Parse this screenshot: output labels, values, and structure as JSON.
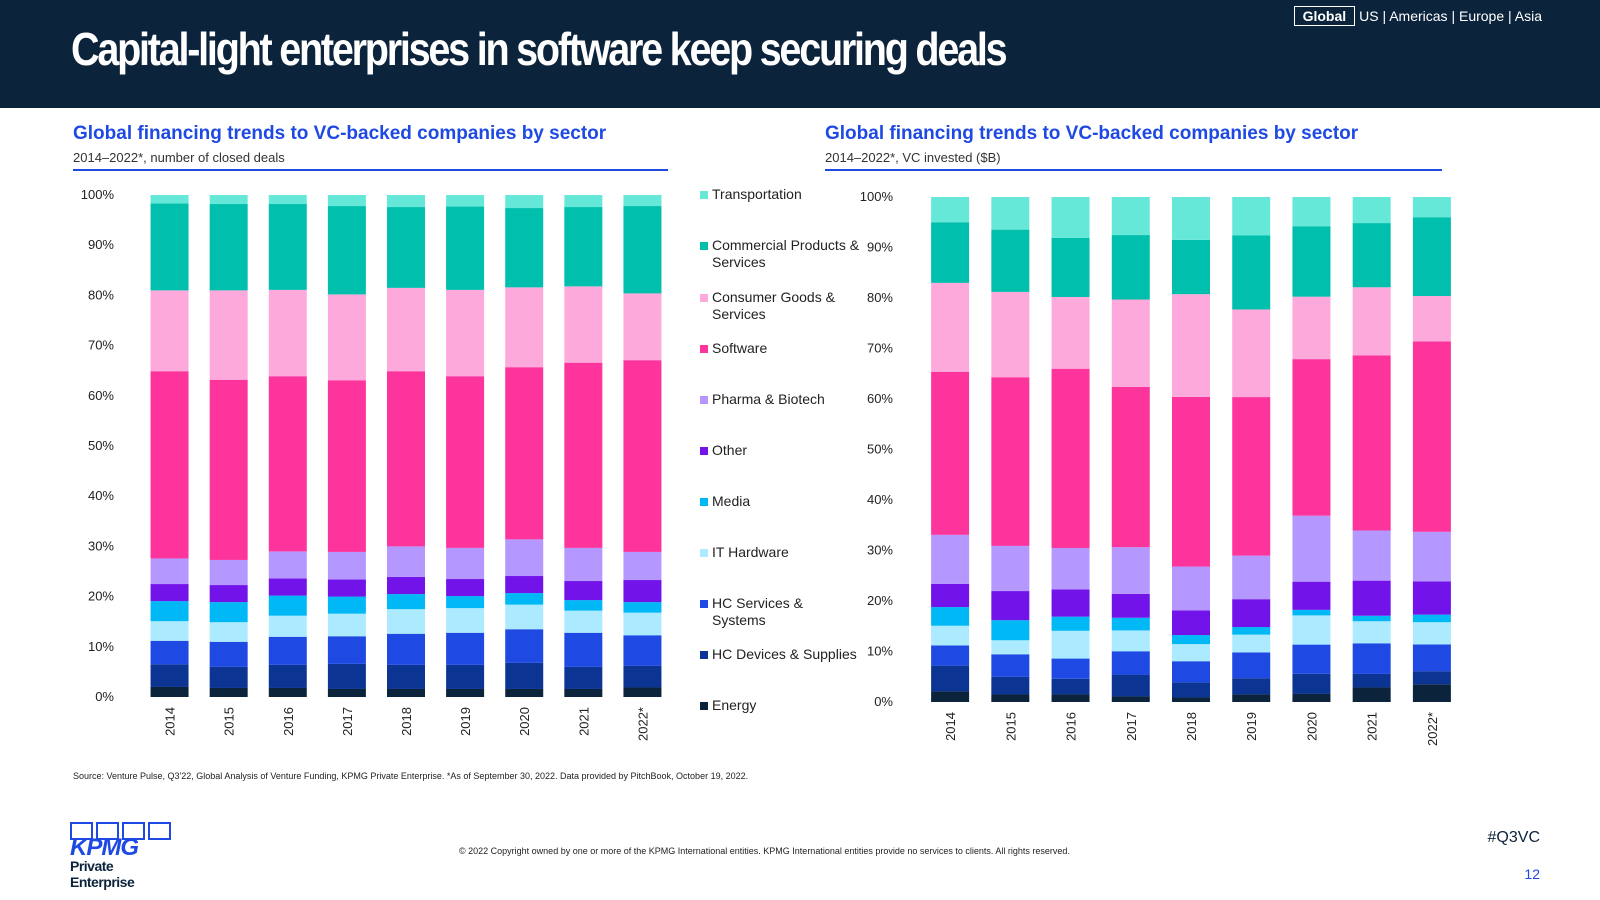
{
  "header": {
    "title": "Capital-light enterprises in software keep securing deals",
    "regions_active": "Global",
    "regions_rest": "US | Americas | Europe | Asia"
  },
  "colors": {
    "Transportation": "#66e8d9",
    "Commercial Products & Services": "#00bfad",
    "Consumer Goods & Services": "#fda9dc",
    "Software": "#fd349c",
    "Pharma & Biotech": "#b497ff",
    "Other": "#7213ea",
    "Media": "#00b8f5",
    "IT Hardware": "#acebff",
    "HC Services & Systems": "#1e49e2",
    "HC Devices & Supplies": "#0c3593",
    "Energy": "#0c233c"
  },
  "legend": [
    {
      "key": "Transportation",
      "label": "Transportation"
    },
    {
      "key": "Commercial Products & Services",
      "label": "Commercial Products & Services"
    },
    {
      "key": "Consumer Goods & Services",
      "label": "Consumer Goods & Services"
    },
    {
      "key": "Software",
      "label": "Software"
    },
    {
      "key": "Pharma & Biotech",
      "label": "Pharma & Biotech"
    },
    {
      "key": "Other",
      "label": "Other"
    },
    {
      "key": "Media",
      "label": "Media"
    },
    {
      "key": "IT Hardware",
      "label": "IT Hardware"
    },
    {
      "key": "HC Services & Systems",
      "label": "HC Services & Systems"
    },
    {
      "key": "HC Devices & Supplies",
      "label": "HC Devices & Supplies"
    },
    {
      "key": "Energy",
      "label": "Energy"
    }
  ],
  "chart_data": [
    {
      "type": "bar",
      "stacked": "percent",
      "title": "Global financing trends to VC-backed companies by sector",
      "subtitle": "2014–2022*, number of closed deals",
      "categories": [
        "2014",
        "2015",
        "2016",
        "2017",
        "2018",
        "2019",
        "2020",
        "2021",
        "2022*"
      ],
      "yticks": [
        "0%",
        "10%",
        "20%",
        "30%",
        "40%",
        "50%",
        "60%",
        "70%",
        "80%",
        "90%",
        "100%"
      ],
      "ylim": [
        0,
        100
      ],
      "series": [
        {
          "name": "Energy",
          "values": [
            2.0,
            1.8,
            1.8,
            1.6,
            1.6,
            1.6,
            1.6,
            1.6,
            1.9
          ]
        },
        {
          "name": "HC Devices & Supplies",
          "values": [
            4.5,
            4.2,
            4.6,
            5.0,
            4.8,
            4.8,
            5.2,
            4.4,
            4.3
          ]
        },
        {
          "name": "HC Services & Systems",
          "values": [
            4.7,
            5.0,
            5.6,
            5.5,
            6.2,
            6.4,
            6.7,
            6.8,
            6.1
          ]
        },
        {
          "name": "IT Hardware",
          "values": [
            3.9,
            3.9,
            4.2,
            4.5,
            4.9,
            4.9,
            4.9,
            4.4,
            4.5
          ]
        },
        {
          "name": "Media",
          "values": [
            4.0,
            4.0,
            4.0,
            3.4,
            3.0,
            2.4,
            2.3,
            2.1,
            2.1
          ]
        },
        {
          "name": "Other",
          "values": [
            3.4,
            3.4,
            3.4,
            3.4,
            3.4,
            3.4,
            3.4,
            3.8,
            4.4
          ]
        },
        {
          "name": "Pharma & Biotech",
          "values": [
            5.1,
            5.0,
            5.4,
            5.5,
            6.1,
            6.2,
            7.3,
            6.6,
            5.6
          ]
        },
        {
          "name": "Software",
          "values": [
            37.3,
            35.9,
            34.9,
            34.2,
            34.9,
            34.2,
            34.3,
            36.9,
            38.2
          ]
        },
        {
          "name": "Consumer Goods & Services",
          "values": [
            16.1,
            17.8,
            17.2,
            17.1,
            16.6,
            17.2,
            15.9,
            15.2,
            13.3
          ]
        },
        {
          "name": "Commercial Products & Services",
          "values": [
            17.3,
            17.2,
            17.1,
            17.6,
            16.1,
            16.6,
            15.8,
            15.8,
            17.4
          ]
        },
        {
          "name": "Transportation",
          "values": [
            1.7,
            1.8,
            1.8,
            2.2,
            2.4,
            2.3,
            2.6,
            2.4,
            2.2
          ]
        }
      ]
    },
    {
      "type": "bar",
      "stacked": "percent",
      "title": "Global financing trends to VC-backed companies by sector",
      "subtitle": "2014–2022*, VC invested ($B)",
      "categories": [
        "2014",
        "2015",
        "2016",
        "2017",
        "2018",
        "2019",
        "2020",
        "2021",
        "2022*"
      ],
      "yticks": [
        "0%",
        "10%",
        "20%",
        "30%",
        "40%",
        "50%",
        "60%",
        "70%",
        "80%",
        "90%",
        "100%"
      ],
      "ylim": [
        0,
        100
      ],
      "series": [
        {
          "name": "Energy",
          "values": [
            2.1,
            1.5,
            1.5,
            1.1,
            0.9,
            1.5,
            1.6,
            2.9,
            3.5
          ]
        },
        {
          "name": "HC Devices & Supplies",
          "values": [
            5.1,
            3.5,
            3.1,
            4.3,
            3.0,
            3.2,
            4.0,
            2.7,
            2.6
          ]
        },
        {
          "name": "HC Services & Systems",
          "values": [
            4.0,
            4.5,
            4.0,
            4.6,
            4.2,
            5.1,
            5.8,
            6.1,
            5.3
          ]
        },
        {
          "name": "IT Hardware",
          "values": [
            3.9,
            2.8,
            5.5,
            4.1,
            3.4,
            3.5,
            5.8,
            4.4,
            4.4
          ]
        },
        {
          "name": "Media",
          "values": [
            3.7,
            4.0,
            2.8,
            2.5,
            1.8,
            1.5,
            1.1,
            1.1,
            1.5
          ]
        },
        {
          "name": "Other",
          "values": [
            4.6,
            5.8,
            5.4,
            4.7,
            4.9,
            5.5,
            5.6,
            7.0,
            6.6
          ]
        },
        {
          "name": "Pharma & Biotech",
          "values": [
            9.7,
            9.0,
            8.2,
            9.2,
            8.7,
            8.6,
            13.1,
            10.0,
            9.8
          ]
        },
        {
          "name": "Software",
          "values": [
            32.3,
            33.6,
            35.5,
            31.6,
            33.7,
            31.3,
            31.1,
            34.9,
            37.7
          ]
        },
        {
          "name": "Consumer Goods & Services",
          "values": [
            17.6,
            17.0,
            14.2,
            17.2,
            20.4,
            17.3,
            12.4,
            13.6,
            9.0
          ]
        },
        {
          "name": "Commercial Products & Services",
          "values": [
            12.0,
            12.4,
            11.7,
            12.7,
            10.8,
            14.6,
            14.0,
            12.8,
            15.6
          ]
        },
        {
          "name": "Transportation",
          "values": [
            5.0,
            6.5,
            8.1,
            7.5,
            8.5,
            7.6,
            5.8,
            5.2,
            4.0
          ]
        }
      ]
    }
  ],
  "footer": {
    "source": "Source: Venture Pulse, Q3'22, Global Analysis of Venture Funding, KPMG Private Enterprise. *As of September 30, 2022. Data provided by PitchBook, October 19, 2022.",
    "copyright": "© 2022 Copyright owned by one or more of the KPMG International entities. KPMG International entities provide no services to clients. All rights reserved.",
    "hashtag": "#Q3VC",
    "page": "12",
    "logo_text": "KPMG",
    "logo_sub": "Private Enterprise"
  }
}
